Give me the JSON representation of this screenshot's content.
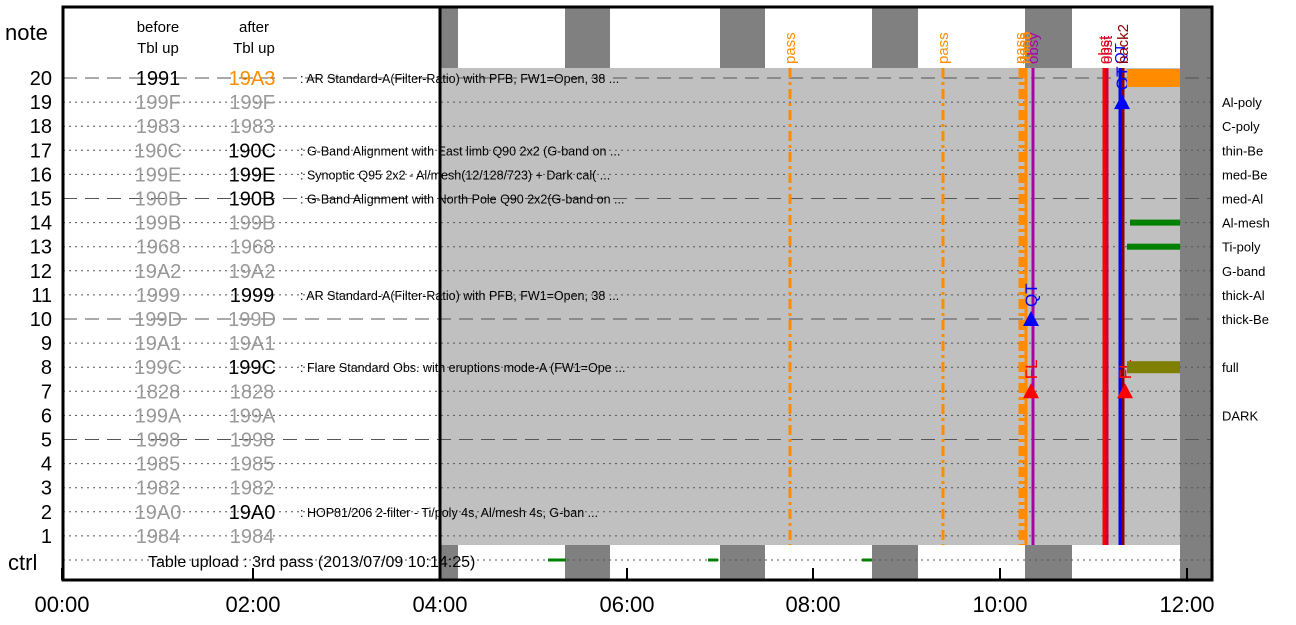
{
  "chart_data": {
    "type": "timeline",
    "header": {
      "note_label": "note",
      "before_label": [
        "before",
        "Tbl up"
      ],
      "after_label": [
        "after",
        "Tbl up"
      ],
      "ctrl_label": "ctrl"
    },
    "x_axis": {
      "range_hours": [
        0,
        12.3
      ],
      "ticks": [
        "00:00",
        "02:00",
        "04:00",
        "06:00",
        "08:00",
        "10:00",
        "12:00"
      ]
    },
    "table_upload_text": "Table upload : 3rd pass (2013/07/09 10:14:25)",
    "rows": [
      {
        "note": 20,
        "before": "1991",
        "after": "19A3",
        "before_color": "#000000",
        "after_color": "#ff8c00",
        "desc": ": AR Standard-A(Filter-Ratio) with PFB, FW1=Open, 38 ...",
        "filter": "",
        "dashed": true
      },
      {
        "note": 19,
        "before": "199F",
        "after": "199F",
        "before_color": "#999999",
        "after_color": "#999999",
        "desc": "",
        "filter": "Al-poly",
        "dashed": false
      },
      {
        "note": 18,
        "before": "1983",
        "after": "1983",
        "before_color": "#999999",
        "after_color": "#999999",
        "desc": "",
        "filter": "C-poly",
        "dashed": false
      },
      {
        "note": 17,
        "before": "190C",
        "after": "190C",
        "before_color": "#999999",
        "after_color": "#000000",
        "desc": ": G-Band Alignment with East limb Q90 2x2 (G-band on ...",
        "filter": "thin-Be",
        "dashed": false
      },
      {
        "note": 16,
        "before": "199E",
        "after": "199E",
        "before_color": "#999999",
        "after_color": "#000000",
        "desc": ": Synoptic Q95 2x2 - Al/mesh(12/128/723) + Dark cal( ...",
        "filter": "med-Be",
        "dashed": false
      },
      {
        "note": 15,
        "before": "190B",
        "after": "190B",
        "before_color": "#999999",
        "after_color": "#000000",
        "desc": ": G-Band Alignment with North Pole Q90 2x2(G-band on ...",
        "filter": "med-Al",
        "dashed": true
      },
      {
        "note": 14,
        "before": "199B",
        "after": "199B",
        "before_color": "#999999",
        "after_color": "#999999",
        "desc": "",
        "filter": "Al-mesh",
        "dashed": false
      },
      {
        "note": 13,
        "before": "1968",
        "after": "1968",
        "before_color": "#999999",
        "after_color": "#999999",
        "desc": "",
        "filter": "Ti-poly",
        "dashed": false
      },
      {
        "note": 12,
        "before": "19A2",
        "after": "19A2",
        "before_color": "#999999",
        "after_color": "#999999",
        "desc": "",
        "filter": "G-band",
        "dashed": false
      },
      {
        "note": 11,
        "before": "1999",
        "after": "1999",
        "before_color": "#999999",
        "after_color": "#000000",
        "desc": ": AR Standard-A(Filter-Ratio) with PFB, FW1=Open, 38 ...",
        "filter": "thick-Al",
        "dashed": false
      },
      {
        "note": 10,
        "before": "199D",
        "after": "199D",
        "before_color": "#999999",
        "after_color": "#999999",
        "desc": "",
        "filter": "thick-Be",
        "dashed": true
      },
      {
        "note": 9,
        "before": "19A1",
        "after": "19A1",
        "before_color": "#999999",
        "after_color": "#999999",
        "desc": "",
        "filter": "",
        "dashed": false
      },
      {
        "note": 8,
        "before": "199C",
        "after": "199C",
        "before_color": "#999999",
        "after_color": "#000000",
        "desc": ": Flare Standard Obs. with eruptions mode-A (FW1=Ope ...",
        "filter": "full",
        "dashed": false
      },
      {
        "note": 7,
        "before": "1828",
        "after": "1828",
        "before_color": "#999999",
        "after_color": "#999999",
        "desc": "",
        "filter": "",
        "dashed": false
      },
      {
        "note": 6,
        "before": "199A",
        "after": "199A",
        "before_color": "#999999",
        "after_color": "#999999",
        "desc": "",
        "filter": "DARK",
        "dashed": false
      },
      {
        "note": 5,
        "before": "1998",
        "after": "1998",
        "before_color": "#999999",
        "after_color": "#999999",
        "desc": "",
        "filter": "",
        "dashed": true
      },
      {
        "note": 4,
        "before": "1985",
        "after": "1985",
        "before_color": "#999999",
        "after_color": "#999999",
        "desc": "",
        "filter": "",
        "dashed": false
      },
      {
        "note": 3,
        "before": "1982",
        "after": "1982",
        "before_color": "#999999",
        "after_color": "#999999",
        "desc": "",
        "filter": "",
        "dashed": false
      },
      {
        "note": 2,
        "before": "19A0",
        "after": "19A0",
        "before_color": "#999999",
        "after_color": "#000000",
        "desc": ": HOP81/206 2-filter - Ti/poly 4s, Al/mesh 4s, G-ban ...",
        "filter": "",
        "dashed": false
      },
      {
        "note": 1,
        "before": "1984",
        "after": "1984",
        "before_color": "#999999",
        "after_color": "#999999",
        "desc": "",
        "filter": "",
        "dashed": false
      }
    ],
    "dark_bands_hours": [
      [
        0.0,
        0.1
      ],
      [
        1.35,
        1.85
      ],
      [
        2.9,
        3.35
      ],
      [
        4.55,
        5.15
      ],
      [
        5.85,
        6.35
      ],
      [
        7.4,
        7.8
      ]
    ],
    "event_markers": [
      {
        "label": "pass",
        "hour": 7.75,
        "color": "#ff8c00",
        "style": "dashdot"
      },
      {
        "label": "pass",
        "hour": 9.4,
        "color": "#ff8c00",
        "style": "dashdot"
      },
      {
        "label": "pass",
        "hour": 10.22,
        "color": "#ff8c00",
        "style": "dashdot"
      },
      {
        "label": "pass",
        "hour": 10.24,
        "color": "#ff8c00",
        "style": "dashdot"
      },
      {
        "label": "tblup",
        "hour": 10.25,
        "color": "#ff8c00",
        "style": "solid"
      },
      {
        "label": "obsy",
        "hour": 10.34,
        "color": "#aa00aa",
        "style": "solid"
      },
      {
        "label": "obst",
        "hour": 11.1,
        "color": "#ff0000",
        "style": "solid"
      },
      {
        "label": "obst",
        "hour": 11.12,
        "color": "#cc0033",
        "style": "solid"
      },
      {
        "label": "QT",
        "hour": 11.28,
        "color": "#0000ff",
        "style": "solid"
      },
      {
        "label": "back2",
        "hour": 11.3,
        "color": "#8b0000",
        "style": "solid"
      }
    ],
    "triggers": [
      {
        "label": "QT",
        "hour": 10.33,
        "row": 10,
        "color": "#0000ff"
      },
      {
        "label": "FL",
        "hour": 10.33,
        "row": 7,
        "color": "#ff0000"
      },
      {
        "label": "QT",
        "hour": 11.3,
        "row": 19,
        "color": "#0000ff"
      },
      {
        "label": "FL",
        "hour": 11.32,
        "row": 7,
        "color": "#ff0000"
      }
    ],
    "filter_bars": [
      {
        "row": 20,
        "start": 11.45,
        "end": 11.9,
        "color": "#ff8c00"
      },
      {
        "row": 14,
        "start": 11.48,
        "end": 11.9,
        "color": "#008000"
      },
      {
        "row": 13,
        "start": 11.45,
        "end": 11.9,
        "color": "#008000"
      },
      {
        "row": 8,
        "start": 11.45,
        "end": 11.9,
        "color": "#808000"
      }
    ],
    "obs_block_hours": [
      4.0,
      11.9
    ],
    "colors": {
      "gray_fill": "#c0c0c0",
      "dark_band": "#808080",
      "inactive_text": "#999999"
    }
  }
}
